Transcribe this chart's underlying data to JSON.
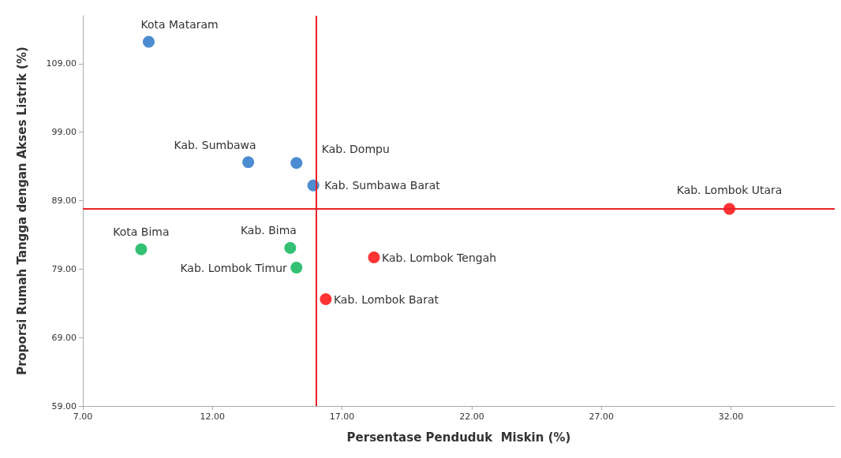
{
  "chart_data": {
    "type": "scatter",
    "xlabel": "Persentase Penduduk  Miskin (%)",
    "ylabel": "Proporsi Rumah Tangga dengan Akses Listrik (%)",
    "xlim": [
      7,
      36
    ],
    "xticks": [
      {
        "value": 7,
        "label": "7.00"
      },
      {
        "value": 12,
        "label": "12.00"
      },
      {
        "value": 17,
        "label": "17.00"
      },
      {
        "value": 22,
        "label": "22.00"
      },
      {
        "value": 27,
        "label": "27.00"
      },
      {
        "value": 32,
        "label": "32.00"
      }
    ],
    "ylim": [
      59,
      116
    ],
    "yticks": [
      {
        "value": 59,
        "label": "59.00"
      },
      {
        "value": 69,
        "label": "69.00"
      },
      {
        "value": 79,
        "label": "79.00"
      },
      {
        "value": 89,
        "label": "89.00"
      },
      {
        "value": 99,
        "label": "99.00"
      },
      {
        "value": 109,
        "label": "109.00"
      }
    ],
    "grid": false,
    "marker": "circle",
    "series": [
      {
        "color": "#1f6fc4",
        "x": [
          9.54,
          15.24,
          13.38,
          15.89
        ],
        "values": [
          112.2,
          94.5,
          94.6,
          91.2
        ]
      },
      {
        "color": "#00b050",
        "x": [
          9.25,
          15.0,
          15.24
        ],
        "values": [
          81.9,
          82.1,
          79.2
        ]
      },
      {
        "color": "#ff0000",
        "x": [
          31.94,
          18.23,
          16.37
        ],
        "values": [
          87.8,
          80.7,
          74.6
        ]
      }
    ],
    "ref_lines": [
      {
        "axis": "x",
        "value": 16.0,
        "color": "#e8222a"
      },
      {
        "axis": "y",
        "value": 87.8,
        "color": "#e8222a"
      }
    ],
    "annotations": [
      {
        "text": "Kota Mataram",
        "x": 9.54,
        "y": 112.2
      },
      {
        "text": "Kab. Dompu",
        "x": 15.24,
        "y": 94.5
      },
      {
        "text": "Kab. Sumbawa",
        "x": 13.38,
        "y": 94.6
      },
      {
        "text": "Kab. Sumbawa Barat",
        "x": 15.89,
        "y": 91.2
      },
      {
        "text": "Kota Bima",
        "x": 9.25,
        "y": 81.9
      },
      {
        "text": "Kab. Bima",
        "x": 15.0,
        "y": 82.1
      },
      {
        "text": "Kab. Lombok Timur",
        "x": 15.24,
        "y": 79.2
      },
      {
        "text": "Kab. Lombok Utara",
        "x": 31.94,
        "y": 87.8
      },
      {
        "text": "Kab. Lombok Tengah",
        "x": 18.23,
        "y": 80.7
      },
      {
        "text": "Kab. Lombok Barat",
        "x": 16.37,
        "y": 74.6
      }
    ]
  }
}
